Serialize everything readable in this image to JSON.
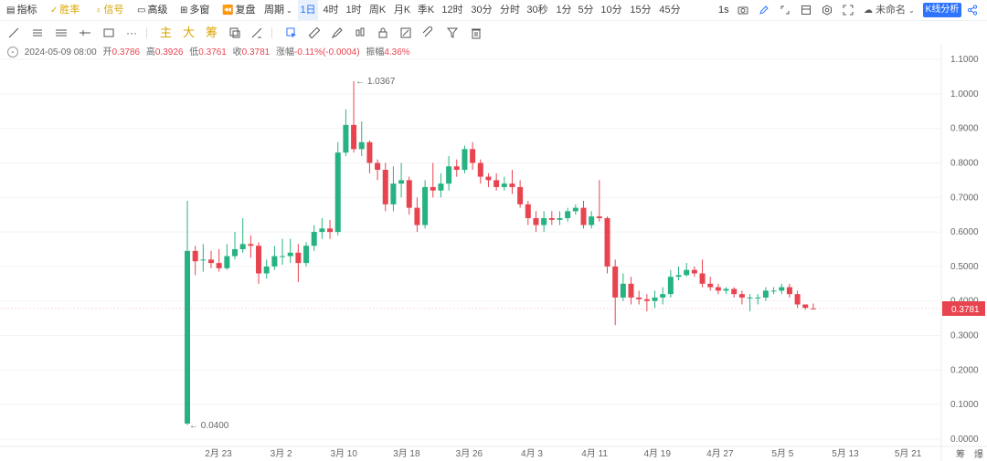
{
  "toolbar": {
    "indicators": "指标",
    "win_rate": "胜率",
    "signal": "信号",
    "advanced": "高级",
    "multi_window": "多窗",
    "replay": "复盘",
    "period": "周期",
    "timeframes": [
      "1日",
      "4时",
      "1时",
      "周K",
      "月K",
      "季K",
      "12时",
      "30分",
      "分时",
      "30秒",
      "1分",
      "5分",
      "10分",
      "15分",
      "45分"
    ],
    "active_timeframe": "1日",
    "interval": "1s",
    "unnamed": "未命名",
    "kline_analysis": "K线分析"
  },
  "drawbar": {
    "chips": [
      "主",
      "大",
      "筹"
    ]
  },
  "ohlc": {
    "date": "2024-05-09 08:00",
    "open_label": "开",
    "open": "0.3786",
    "high_label": "高",
    "high": "0.3926",
    "low_label": "低",
    "low": "0.3761",
    "close_label": "收",
    "close": "0.3781",
    "change_label": "涨幅",
    "change": "-0.11%(-0.0004)",
    "amp_label": "振幅",
    "amp": "4.36%"
  },
  "bottom_right": {
    "chip_a": "筹",
    "chip_b": "爆"
  },
  "colors": {
    "up": "#26b381",
    "down": "#e8444f",
    "accent": "#2f74ff",
    "grid": "#f0f0f0"
  },
  "chart_data": {
    "type": "candlestick",
    "y_axis": {
      "ticks": [
        "1.1000",
        "1.0000",
        "0.9000",
        "0.8000",
        "0.7000",
        "0.6000",
        "0.5000",
        "0.4000",
        "0.3000",
        "0.2000",
        "0.1000",
        "0.0000"
      ],
      "ylim": [
        0,
        1.1
      ]
    },
    "x_axis": {
      "ticks": [
        "2月 23",
        "3月 2",
        "3月 10",
        "3月 18",
        "3月 26",
        "4月 3",
        "4月 11",
        "4月 19",
        "4月 27",
        "5月 5",
        "5月 13",
        "5月 21"
      ]
    },
    "last_price": "0.3781",
    "max_label": "1.0367",
    "min_label": "0.0400",
    "candles": [
      [
        0.045,
        0.545,
        0.69,
        0.04
      ],
      [
        0.545,
        0.515,
        0.56,
        0.475
      ],
      [
        0.52,
        0.52,
        0.565,
        0.485
      ],
      [
        0.52,
        0.51,
        0.545,
        0.495
      ],
      [
        0.51,
        0.495,
        0.55,
        0.485
      ],
      [
        0.495,
        0.53,
        0.565,
        0.49
      ],
      [
        0.53,
        0.55,
        0.6,
        0.52
      ],
      [
        0.55,
        0.565,
        0.64,
        0.54
      ],
      [
        0.565,
        0.56,
        0.59,
        0.525
      ],
      [
        0.56,
        0.48,
        0.57,
        0.45
      ],
      [
        0.48,
        0.5,
        0.52,
        0.465
      ],
      [
        0.5,
        0.53,
        0.56,
        0.49
      ],
      [
        0.53,
        0.53,
        0.58,
        0.505
      ],
      [
        0.53,
        0.54,
        0.58,
        0.51
      ],
      [
        0.54,
        0.51,
        0.565,
        0.455
      ],
      [
        0.51,
        0.56,
        0.57,
        0.5
      ],
      [
        0.56,
        0.6,
        0.62,
        0.545
      ],
      [
        0.6,
        0.61,
        0.64,
        0.58
      ],
      [
        0.61,
        0.6,
        0.635,
        0.58
      ],
      [
        0.6,
        0.83,
        0.86,
        0.59
      ],
      [
        0.83,
        0.91,
        0.955,
        0.82
      ],
      [
        0.91,
        0.84,
        1.0367,
        0.83
      ],
      [
        0.84,
        0.86,
        0.92,
        0.82
      ],
      [
        0.86,
        0.8,
        0.865,
        0.77
      ],
      [
        0.8,
        0.78,
        0.81,
        0.75
      ],
      [
        0.78,
        0.68,
        0.8,
        0.66
      ],
      [
        0.68,
        0.74,
        0.79,
        0.66
      ],
      [
        0.74,
        0.75,
        0.8,
        0.7
      ],
      [
        0.75,
        0.67,
        0.76,
        0.65
      ],
      [
        0.67,
        0.62,
        0.7,
        0.6
      ],
      [
        0.62,
        0.73,
        0.75,
        0.61
      ],
      [
        0.73,
        0.72,
        0.8,
        0.7
      ],
      [
        0.72,
        0.74,
        0.77,
        0.7
      ],
      [
        0.74,
        0.79,
        0.82,
        0.72
      ],
      [
        0.79,
        0.78,
        0.81,
        0.76
      ],
      [
        0.78,
        0.84,
        0.85,
        0.77
      ],
      [
        0.84,
        0.8,
        0.86,
        0.78
      ],
      [
        0.8,
        0.76,
        0.81,
        0.74
      ],
      [
        0.76,
        0.75,
        0.77,
        0.73
      ],
      [
        0.75,
        0.73,
        0.77,
        0.72
      ],
      [
        0.73,
        0.74,
        0.76,
        0.72
      ],
      [
        0.74,
        0.73,
        0.78,
        0.71
      ],
      [
        0.73,
        0.68,
        0.75,
        0.67
      ],
      [
        0.68,
        0.64,
        0.69,
        0.62
      ],
      [
        0.64,
        0.62,
        0.66,
        0.6
      ],
      [
        0.62,
        0.64,
        0.66,
        0.6
      ],
      [
        0.64,
        0.635,
        0.66,
        0.62
      ],
      [
        0.635,
        0.64,
        0.66,
        0.62
      ],
      [
        0.64,
        0.66,
        0.67,
        0.63
      ],
      [
        0.66,
        0.67,
        0.68,
        0.65
      ],
      [
        0.67,
        0.62,
        0.69,
        0.61
      ],
      [
        0.62,
        0.645,
        0.66,
        0.61
      ],
      [
        0.645,
        0.64,
        0.75,
        0.63
      ],
      [
        0.64,
        0.5,
        0.645,
        0.48
      ],
      [
        0.5,
        0.41,
        0.52,
        0.33
      ],
      [
        0.41,
        0.45,
        0.48,
        0.4
      ],
      [
        0.45,
        0.41,
        0.47,
        0.39
      ],
      [
        0.41,
        0.405,
        0.43,
        0.39
      ],
      [
        0.405,
        0.4,
        0.42,
        0.37
      ],
      [
        0.4,
        0.41,
        0.43,
        0.38
      ],
      [
        0.41,
        0.42,
        0.44,
        0.39
      ],
      [
        0.42,
        0.47,
        0.49,
        0.41
      ],
      [
        0.47,
        0.475,
        0.5,
        0.46
      ],
      [
        0.475,
        0.49,
        0.51,
        0.47
      ],
      [
        0.49,
        0.48,
        0.5,
        0.47
      ],
      [
        0.48,
        0.45,
        0.52,
        0.44
      ],
      [
        0.45,
        0.44,
        0.47,
        0.43
      ],
      [
        0.44,
        0.43,
        0.45,
        0.42
      ],
      [
        0.43,
        0.435,
        0.44,
        0.42
      ],
      [
        0.435,
        0.42,
        0.44,
        0.41
      ],
      [
        0.42,
        0.41,
        0.43,
        0.39
      ],
      [
        0.41,
        0.41,
        0.42,
        0.37
      ],
      [
        0.41,
        0.41,
        0.42,
        0.39
      ],
      [
        0.41,
        0.43,
        0.44,
        0.4
      ],
      [
        0.43,
        0.43,
        0.44,
        0.42
      ],
      [
        0.43,
        0.44,
        0.45,
        0.42
      ],
      [
        0.44,
        0.42,
        0.45,
        0.41
      ],
      [
        0.42,
        0.39,
        0.43,
        0.38
      ],
      [
        0.39,
        0.38,
        0.39,
        0.375
      ],
      [
        0.3786,
        0.3781,
        0.3926,
        0.3761
      ]
    ]
  }
}
